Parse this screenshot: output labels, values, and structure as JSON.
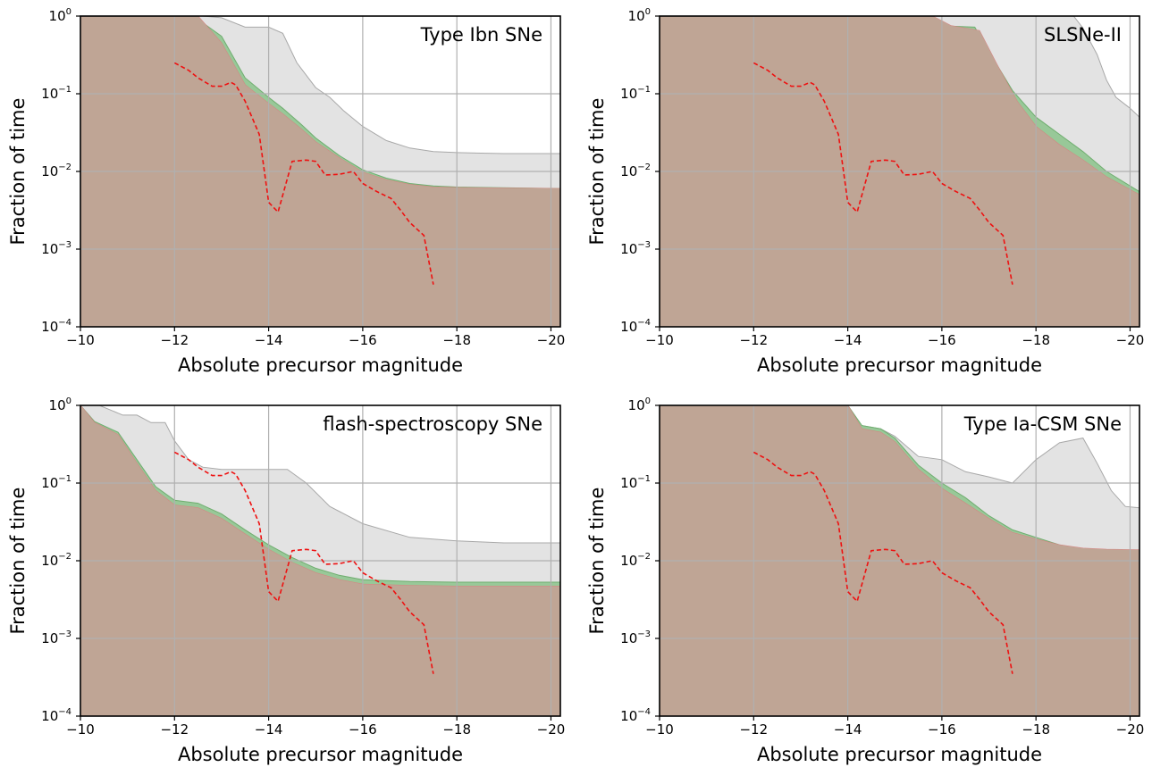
{
  "chart_data": [
    {
      "type": "area",
      "title": "Type Ibn SNe",
      "xlabel": "Absolute precursor magnitude",
      "ylabel": "Fraction of time",
      "xlim": [
        -10,
        -20.2
      ],
      "x_axis_inverted": true,
      "ylim": [
        0.0001,
        1
      ],
      "y_scale": "log",
      "grid": true,
      "x_ticks": [
        "−10",
        "−12",
        "−14",
        "−16",
        "−18",
        "−20"
      ],
      "y_ticks": [
        "10−4",
        "10−3",
        "10−2",
        "10−1",
        "100"
      ],
      "series": [
        {
          "role": "grey-band",
          "color": "#e3e3e3",
          "stroke": "#a8a8a8",
          "x": [
            -10,
            -12.6,
            -13.0,
            -13.5,
            -14.0,
            -14.3,
            -14.6,
            -15.0,
            -15.3,
            -15.6,
            -16.0,
            -16.5,
            -17.0,
            -17.5,
            -18.0,
            -18.5,
            -19.0,
            -20.2
          ],
          "y": [
            1,
            1,
            0.95,
            0.72,
            0.72,
            0.6,
            0.25,
            0.12,
            0.09,
            0.06,
            0.038,
            0.025,
            0.02,
            0.018,
            0.0175,
            0.0172,
            0.017,
            0.017
          ]
        },
        {
          "role": "green-band",
          "color": "#98c898",
          "stroke": "#6fae6f",
          "x": [
            -10,
            -12.4,
            -13.0,
            -13.5,
            -14.0,
            -14.3,
            -14.7,
            -15.0,
            -15.5,
            -16.0,
            -16.5,
            -17.0,
            -17.5,
            -18.0,
            -20.2
          ],
          "y": [
            1,
            1,
            0.55,
            0.16,
            0.09,
            0.065,
            0.04,
            0.027,
            0.016,
            0.0105,
            0.0082,
            0.007,
            0.0065,
            0.0063,
            0.006
          ]
        },
        {
          "role": "red-band",
          "color": "#f0b0b0",
          "stroke": "#d98080",
          "x": [
            -10,
            -12.5,
            -13.0,
            -13.5,
            -14.0,
            -14.3,
            -14.7,
            -15.0,
            -15.5,
            -16.0,
            -16.5,
            -17.0,
            -17.5,
            -18.0,
            -20.2
          ],
          "y": [
            1,
            1,
            0.45,
            0.13,
            0.075,
            0.055,
            0.035,
            0.024,
            0.015,
            0.0098,
            0.0078,
            0.0068,
            0.0063,
            0.0062,
            0.006
          ]
        },
        {
          "role": "dashed-line",
          "color": "#ee1111",
          "x": [
            -12.0,
            -12.3,
            -12.5,
            -12.8,
            -13.0,
            -13.2,
            -13.3,
            -13.5,
            -13.8,
            -14.0,
            -14.2,
            -14.5,
            -14.8,
            -15.0,
            -15.2,
            -15.5,
            -15.8,
            -16.0,
            -16.3,
            -16.6,
            -16.8,
            -17.0,
            -17.3,
            -17.5
          ],
          "y": [
            0.25,
            0.2,
            0.16,
            0.125,
            0.125,
            0.14,
            0.13,
            0.08,
            0.03,
            0.004,
            0.003,
            0.0135,
            0.014,
            0.0135,
            0.009,
            0.0092,
            0.01,
            0.007,
            0.0055,
            0.0045,
            0.0032,
            0.0022,
            0.0015,
            0.00035
          ]
        }
      ]
    },
    {
      "type": "area",
      "title": "SLSNe-II",
      "xlabel": "Absolute precursor magnitude",
      "ylabel": "Fraction of time",
      "xlim": [
        -10,
        -20.2
      ],
      "x_axis_inverted": true,
      "ylim": [
        0.0001,
        1
      ],
      "y_scale": "log",
      "grid": true,
      "x_ticks": [
        "−10",
        "−12",
        "−14",
        "−16",
        "−18",
        "−20"
      ],
      "y_ticks": [
        "10−4",
        "10−3",
        "10−2",
        "10−1",
        "100"
      ],
      "series": [
        {
          "role": "grey-band",
          "color": "#e3e3e3",
          "stroke": "#a8a8a8",
          "x": [
            -10,
            -18.8,
            -19.0,
            -19.3,
            -19.5,
            -19.7,
            -20.0,
            -20.2
          ],
          "y": [
            1,
            1,
            0.7,
            0.32,
            0.15,
            0.09,
            0.065,
            0.05
          ]
        },
        {
          "role": "green-band",
          "color": "#98c898",
          "stroke": "#6fae6f",
          "x": [
            -10,
            -15.6,
            -16.0,
            -16.7,
            -17.0,
            -17.5,
            -18.0,
            -18.5,
            -19.0,
            -19.5,
            -20.2
          ],
          "y": [
            1,
            1,
            0.75,
            0.72,
            0.35,
            0.11,
            0.05,
            0.03,
            0.018,
            0.01,
            0.0055
          ]
        },
        {
          "role": "red-band",
          "color": "#f0b0b0",
          "stroke": "#d98080",
          "x": [
            -10,
            -15.8,
            -16.2,
            -16.8,
            -17.2,
            -17.6,
            -18.0,
            -18.5,
            -19.0,
            -19.5,
            -20.2
          ],
          "y": [
            1,
            1,
            0.75,
            0.65,
            0.22,
            0.08,
            0.038,
            0.022,
            0.014,
            0.0085,
            0.005
          ]
        },
        {
          "role": "dashed-line",
          "color": "#ee1111",
          "x": [
            -12.0,
            -12.3,
            -12.5,
            -12.8,
            -13.0,
            -13.2,
            -13.3,
            -13.5,
            -13.8,
            -14.0,
            -14.2,
            -14.5,
            -14.8,
            -15.0,
            -15.2,
            -15.5,
            -15.8,
            -16.0,
            -16.3,
            -16.6,
            -16.8,
            -17.0,
            -17.3,
            -17.5
          ],
          "y": [
            0.25,
            0.2,
            0.16,
            0.125,
            0.125,
            0.14,
            0.13,
            0.08,
            0.03,
            0.004,
            0.003,
            0.0135,
            0.014,
            0.0135,
            0.009,
            0.0092,
            0.01,
            0.007,
            0.0055,
            0.0045,
            0.0032,
            0.0022,
            0.0015,
            0.00035
          ]
        }
      ]
    },
    {
      "type": "area",
      "title": "flash-spectroscopy SNe",
      "xlabel": "Absolute precursor magnitude",
      "ylabel": "Fraction of time",
      "xlim": [
        -10,
        -20.2
      ],
      "x_axis_inverted": true,
      "ylim": [
        0.0001,
        1
      ],
      "y_scale": "log",
      "grid": true,
      "x_ticks": [
        "−10",
        "−12",
        "−14",
        "−16",
        "−18",
        "−20"
      ],
      "y_ticks": [
        "10−4",
        "10−3",
        "10−2",
        "10−1",
        "100"
      ],
      "series": [
        {
          "role": "grey-band",
          "color": "#e3e3e3",
          "stroke": "#a8a8a8",
          "x": [
            -10,
            -10.4,
            -10.9,
            -11.2,
            -11.5,
            -11.8,
            -12.0,
            -12.3,
            -12.6,
            -13.0,
            -13.5,
            -14.0,
            -14.4,
            -14.8,
            -15.3,
            -16.0,
            -17.0,
            -18.0,
            -19.0,
            -20.2
          ],
          "y": [
            1,
            1,
            0.75,
            0.75,
            0.6,
            0.6,
            0.35,
            0.2,
            0.16,
            0.15,
            0.15,
            0.15,
            0.15,
            0.1,
            0.05,
            0.03,
            0.02,
            0.018,
            0.017,
            0.017
          ]
        },
        {
          "role": "green-band",
          "color": "#98c898",
          "stroke": "#6fae6f",
          "x": [
            -10,
            -10.3,
            -10.8,
            -11.2,
            -11.6,
            -12.0,
            -12.5,
            -13.0,
            -13.5,
            -14.0,
            -14.5,
            -15.0,
            -15.5,
            -16.0,
            -17.0,
            -18.0,
            -20.2
          ],
          "y": [
            1,
            0.62,
            0.45,
            0.2,
            0.09,
            0.06,
            0.055,
            0.04,
            0.025,
            0.016,
            0.011,
            0.008,
            0.0065,
            0.0057,
            0.0054,
            0.0053,
            0.0053
          ]
        },
        {
          "role": "red-band",
          "color": "#f0b0b0",
          "stroke": "#d98080",
          "x": [
            -10,
            -10.3,
            -10.8,
            -11.2,
            -11.6,
            -12.0,
            -12.5,
            -13.0,
            -13.5,
            -14.0,
            -14.5,
            -15.0,
            -15.5,
            -16.0,
            -17.0,
            -18.0,
            -20.2
          ],
          "y": [
            1,
            0.6,
            0.42,
            0.18,
            0.08,
            0.052,
            0.048,
            0.035,
            0.022,
            0.014,
            0.0095,
            0.007,
            0.0057,
            0.005,
            0.0048,
            0.0047,
            0.0047
          ]
        },
        {
          "role": "dashed-line",
          "color": "#ee1111",
          "x": [
            -12.0,
            -12.3,
            -12.5,
            -12.8,
            -13.0,
            -13.2,
            -13.3,
            -13.5,
            -13.8,
            -14.0,
            -14.2,
            -14.5,
            -14.8,
            -15.0,
            -15.2,
            -15.5,
            -15.8,
            -16.0,
            -16.3,
            -16.6,
            -16.8,
            -17.0,
            -17.3,
            -17.5
          ],
          "y": [
            0.25,
            0.2,
            0.16,
            0.125,
            0.125,
            0.14,
            0.13,
            0.08,
            0.03,
            0.004,
            0.003,
            0.0135,
            0.014,
            0.0135,
            0.009,
            0.0092,
            0.01,
            0.007,
            0.0055,
            0.0045,
            0.0032,
            0.0022,
            0.0015,
            0.00035
          ]
        }
      ]
    },
    {
      "type": "area",
      "title": "Type Ia-CSM SNe",
      "xlabel": "Absolute precursor magnitude",
      "ylabel": "Fraction of time",
      "xlim": [
        -10,
        -20.2
      ],
      "x_axis_inverted": true,
      "ylim": [
        0.0001,
        1
      ],
      "y_scale": "log",
      "grid": true,
      "x_ticks": [
        "−10",
        "−12",
        "−14",
        "−16",
        "−18",
        "−20"
      ],
      "y_ticks": [
        "10−4",
        "10−3",
        "10−2",
        "10−1",
        "100"
      ],
      "series": [
        {
          "role": "grey-band",
          "color": "#e3e3e3",
          "stroke": "#a8a8a8",
          "x": [
            -10,
            -14.0,
            -14.3,
            -14.7,
            -15.0,
            -15.5,
            -16.0,
            -16.5,
            -17.0,
            -17.5,
            -18.0,
            -18.5,
            -19.0,
            -19.3,
            -19.6,
            -19.9,
            -20.2
          ],
          "y": [
            1,
            1,
            0.55,
            0.5,
            0.4,
            0.22,
            0.2,
            0.14,
            0.12,
            0.1,
            0.2,
            0.33,
            0.38,
            0.18,
            0.08,
            0.05,
            0.048
          ]
        },
        {
          "role": "green-band",
          "color": "#98c898",
          "stroke": "#6fae6f",
          "x": [
            -10,
            -14.0,
            -14.3,
            -14.7,
            -15.0,
            -15.5,
            -16.0,
            -16.5,
            -17.0,
            -17.5,
            -18.0,
            -18.5,
            -19.0,
            -19.5,
            -20.2
          ],
          "y": [
            1,
            1,
            0.55,
            0.5,
            0.38,
            0.17,
            0.1,
            0.065,
            0.038,
            0.025,
            0.02,
            0.016,
            0.014,
            0.0135,
            0.0133
          ]
        },
        {
          "role": "red-band",
          "color": "#f0b0b0",
          "stroke": "#d98080",
          "x": [
            -10,
            -14.0,
            -14.3,
            -14.7,
            -15.0,
            -15.5,
            -16.0,
            -16.5,
            -17.0,
            -17.5,
            -18.0,
            -18.5,
            -19.0,
            -19.5,
            -20.2
          ],
          "y": [
            1,
            1,
            0.5,
            0.45,
            0.34,
            0.15,
            0.085,
            0.055,
            0.035,
            0.023,
            0.019,
            0.016,
            0.0145,
            0.014,
            0.0138
          ]
        },
        {
          "role": "dashed-line",
          "color": "#ee1111",
          "x": [
            -12.0,
            -12.3,
            -12.5,
            -12.8,
            -13.0,
            -13.2,
            -13.3,
            -13.5,
            -13.8,
            -14.0,
            -14.2,
            -14.5,
            -14.8,
            -15.0,
            -15.2,
            -15.5,
            -15.8,
            -16.0,
            -16.3,
            -16.6,
            -16.8,
            -17.0,
            -17.3,
            -17.5
          ],
          "y": [
            0.25,
            0.2,
            0.16,
            0.125,
            0.125,
            0.14,
            0.13,
            0.08,
            0.03,
            0.004,
            0.003,
            0.0135,
            0.014,
            0.0135,
            0.009,
            0.0092,
            0.01,
            0.007,
            0.0055,
            0.0045,
            0.0032,
            0.0022,
            0.0015,
            0.00035
          ]
        }
      ]
    }
  ]
}
